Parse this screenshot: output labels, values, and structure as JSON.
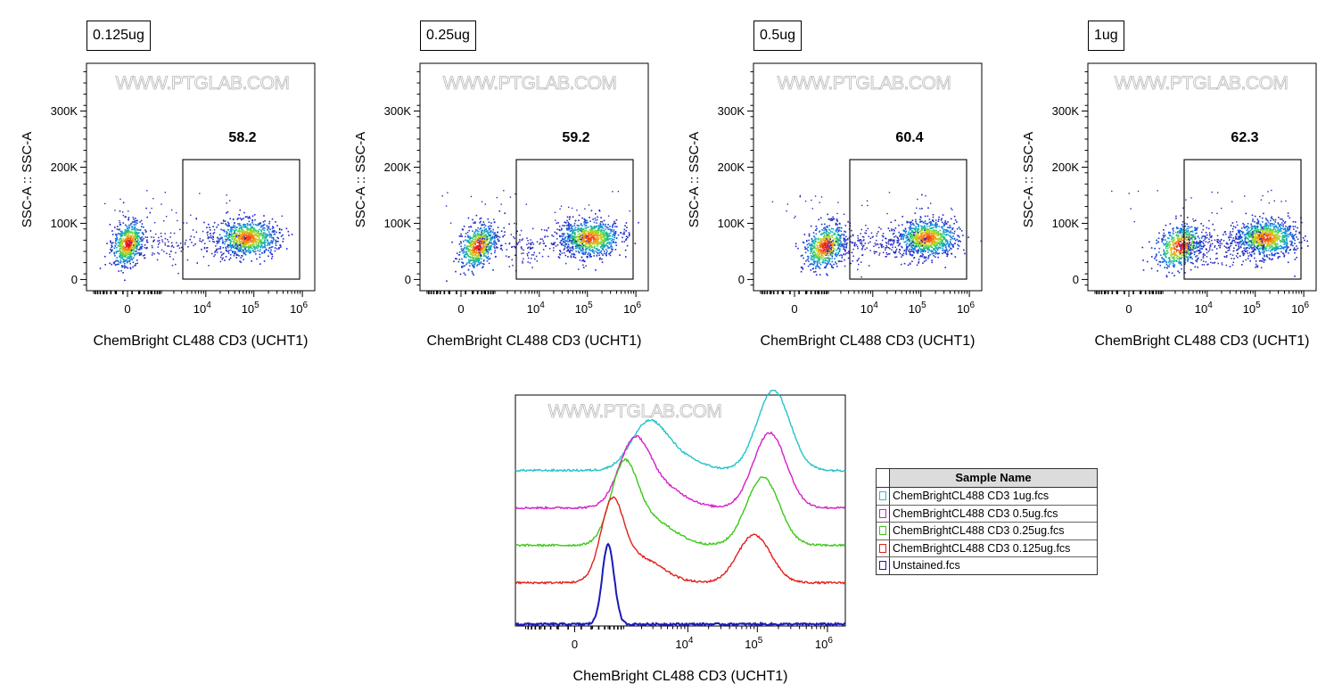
{
  "watermark": "WWW.PTGLAB.COM",
  "scatter_panels": [
    {
      "sample_label": "0.125ug",
      "gate_value": "58.2"
    },
    {
      "sample_label": "0.25ug",
      "gate_value": "59.2"
    },
    {
      "sample_label": "0.5ug",
      "gate_value": "60.4"
    },
    {
      "sample_label": "1ug",
      "gate_value": "62.3"
    }
  ],
  "legend": {
    "title": "Sample Name",
    "items": [
      {
        "name": "ChemBrightCL488 CD3 1ug.fcs",
        "color": "#27c2c8"
      },
      {
        "name": "ChemBrightCL488 CD3 0.5ug.fcs",
        "color": "#d51fc7"
      },
      {
        "name": "ChemBrightCL488 CD3 0.25ug.fcs",
        "color": "#3ec81a"
      },
      {
        "name": "ChemBrightCL488 CD3 0.125ug.fcs",
        "color": "#e0201c"
      },
      {
        "name": "Unstained.fcs",
        "color": "#1a1ab8"
      }
    ]
  },
  "chart_data": [
    {
      "type": "scatter",
      "sample": "0.125ug",
      "xlabel": "ChemBright CL488 CD3 (UCHT1)",
      "ylabel": "SSC-A :: SSC-A",
      "x_scale": "biexponential",
      "x_ticks": [
        "0",
        "10^4",
        "10^5",
        "10^6"
      ],
      "y_ticks": [
        "0",
        "100K",
        "200K",
        "300K"
      ],
      "ylim": [
        -20000,
        385000
      ],
      "gate": {
        "x": [
          15000,
          1000000
        ],
        "y": [
          -15000,
          205000
        ],
        "percent": 58.2
      },
      "populations": [
        {
          "x_center": 0,
          "y_center": 65000,
          "share": 0.42
        },
        {
          "x_center": 70000,
          "y_center": 75000,
          "share": 0.58
        }
      ]
    },
    {
      "type": "scatter",
      "sample": "0.25ug",
      "xlabel": "ChemBright CL488 CD3 (UCHT1)",
      "ylabel": "SSC-A :: SSC-A",
      "x_scale": "biexponential",
      "x_ticks": [
        "0",
        "10^4",
        "10^5",
        "10^6"
      ],
      "y_ticks": [
        "0",
        "100K",
        "200K",
        "300K"
      ],
      "ylim": [
        -20000,
        385000
      ],
      "gate": {
        "x": [
          15000,
          1000000
        ],
        "y": [
          -15000,
          205000
        ],
        "percent": 59.2
      },
      "populations": [
        {
          "x_center": 300,
          "y_center": 60000,
          "share": 0.41
        },
        {
          "x_center": 110000,
          "y_center": 75000,
          "share": 0.59
        }
      ]
    },
    {
      "type": "scatter",
      "sample": "0.5ug",
      "xlabel": "ChemBright CL488 CD3 (UCHT1)",
      "ylabel": "SSC-A :: SSC-A",
      "x_scale": "biexponential",
      "x_ticks": [
        "0",
        "10^4",
        "10^5",
        "10^6"
      ],
      "y_ticks": [
        "0",
        "100K",
        "200K",
        "300K"
      ],
      "ylim": [
        -20000,
        385000
      ],
      "gate": {
        "x": [
          15000,
          1000000
        ],
        "y": [
          -15000,
          205000
        ],
        "percent": 60.4
      },
      "populations": [
        {
          "x_center": 800,
          "y_center": 60000,
          "share": 0.4
        },
        {
          "x_center": 130000,
          "y_center": 75000,
          "share": 0.6
        }
      ]
    },
    {
      "type": "scatter",
      "sample": "1ug",
      "xlabel": "ChemBright CL488 CD3 (UCHT1)",
      "ylabel": "SSC-A :: SSC-A",
      "x_scale": "biexponential",
      "x_ticks": [
        "0",
        "10^4",
        "10^5",
        "10^6"
      ],
      "y_ticks": [
        "0",
        "100K",
        "200K",
        "300K"
      ],
      "ylim": [
        -20000,
        385000
      ],
      "gate": {
        "x": [
          15000,
          1000000
        ],
        "y": [
          -15000,
          205000
        ],
        "percent": 62.3
      },
      "populations": [
        {
          "x_center": 2500,
          "y_center": 60000,
          "share": 0.38
        },
        {
          "x_center": 160000,
          "y_center": 75000,
          "share": 0.62
        }
      ]
    },
    {
      "type": "line",
      "subtype": "offset-histogram",
      "xlabel": "ChemBright CL488 CD3 (UCHT1)",
      "x_scale": "biexponential",
      "x_ticks": [
        "0",
        "10^4",
        "10^5",
        "10^6"
      ],
      "series": [
        {
          "name": "ChemBrightCL488 CD3 1ug.fcs",
          "offset": 4,
          "peaks": [
            {
              "x": 2500,
              "height": 0.42
            },
            {
              "x": 170000,
              "height": 0.8
            }
          ]
        },
        {
          "name": "ChemBrightCL488 CD3 0.5ug.fcs",
          "offset": 3,
          "peaks": [
            {
              "x": 1500,
              "height": 0.6
            },
            {
              "x": 150000,
              "height": 0.75
            }
          ]
        },
        {
          "name": "ChemBrightCL488 CD3 0.25ug.fcs",
          "offset": 2,
          "peaks": [
            {
              "x": 1000,
              "height": 0.72
            },
            {
              "x": 120000,
              "height": 0.68
            }
          ]
        },
        {
          "name": "ChemBrightCL488 CD3 0.125ug.fcs",
          "offset": 1,
          "peaks": [
            {
              "x": 600,
              "height": 0.72
            },
            {
              "x": 90000,
              "height": 0.48
            }
          ]
        },
        {
          "name": "Unstained.fcs",
          "offset": 0,
          "peaks": [
            {
              "x": 500,
              "height": 0.8
            }
          ]
        }
      ]
    }
  ]
}
